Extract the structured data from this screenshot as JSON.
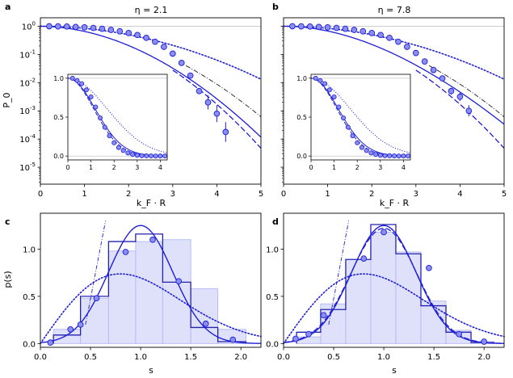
{
  "chart_data": [
    {
      "panel": "a",
      "type": "line",
      "title": "η = 2.1",
      "xlabel": "k_F · R",
      "ylabel": "P_0",
      "xlim": [
        0,
        5
      ],
      "ylim": [
        -5.6,
        0.3
      ],
      "yscale": "log",
      "xticks": [
        "0",
        "1",
        "2",
        "3",
        "4",
        "5"
      ],
      "yticks": [
        "10^-5",
        "10^-4",
        "10^-3",
        "10^-2",
        "10^-1",
        "10^0"
      ],
      "points_log10": [
        [
          0.2,
          0
        ],
        [
          0.4,
          -0.004
        ],
        [
          0.6,
          -0.01
        ],
        [
          0.8,
          -0.025
        ],
        [
          1.0,
          -0.04
        ],
        [
          1.2,
          -0.06
        ],
        [
          1.4,
          -0.09
        ],
        [
          1.6,
          -0.13
        ],
        [
          1.8,
          -0.18
        ],
        [
          2.0,
          -0.24
        ],
        [
          2.2,
          -0.31
        ],
        [
          2.4,
          -0.41
        ],
        [
          2.6,
          -0.55
        ],
        [
          2.8,
          -0.73
        ],
        [
          3.0,
          -0.97
        ],
        [
          3.2,
          -1.3
        ],
        [
          3.4,
          -1.75
        ],
        [
          3.6,
          -2.3
        ],
        [
          3.8,
          -2.7
        ],
        [
          4.0,
          -3.1
        ],
        [
          4.2,
          -3.75
        ]
      ],
      "errorbars": [
        [
          3.8,
          0.25
        ],
        [
          4.0,
          0.3
        ],
        [
          4.2,
          0.35
        ]
      ],
      "inset": {
        "xlim": [
          0,
          4.3
        ],
        "ylim": [
          -0.05,
          1.05
        ],
        "xticks": [
          "0",
          "1",
          "2",
          "3",
          "4"
        ],
        "yticks": [
          "0.0",
          "0.5",
          "1.0"
        ],
        "points": [
          [
            0.2,
            1.0
          ],
          [
            0.4,
            0.97
          ],
          [
            0.6,
            0.93
          ],
          [
            0.8,
            0.85
          ],
          [
            1.0,
            0.76
          ],
          [
            1.2,
            0.63
          ],
          [
            1.4,
            0.49
          ],
          [
            1.6,
            0.37
          ],
          [
            1.8,
            0.26
          ],
          [
            2.0,
            0.17
          ],
          [
            2.2,
            0.11
          ],
          [
            2.4,
            0.07
          ],
          [
            2.6,
            0.04
          ],
          [
            2.8,
            0.02
          ],
          [
            3.0,
            0.01
          ],
          [
            3.2,
            0.005
          ],
          [
            3.4,
            0.003
          ],
          [
            3.6,
            0.002
          ],
          [
            3.8,
            0.001
          ],
          [
            4.0,
            0.0
          ],
          [
            4.2,
            0.0
          ]
        ]
      }
    },
    {
      "panel": "b",
      "type": "line",
      "title": "η = 7.8",
      "xlabel": "k_F · R",
      "ylabel": "",
      "xlim": [
        0,
        5
      ],
      "ylim": [
        -5.6,
        0.3
      ],
      "yscale": "log",
      "xticks": [
        "0",
        "1",
        "2",
        "3",
        "4",
        "5"
      ],
      "yticks": [],
      "points_log10": [
        [
          0.2,
          0
        ],
        [
          0.4,
          -0.004
        ],
        [
          0.6,
          -0.01
        ],
        [
          0.8,
          -0.025
        ],
        [
          1.0,
          -0.04
        ],
        [
          1.2,
          -0.06
        ],
        [
          1.4,
          -0.09
        ],
        [
          1.6,
          -0.13
        ],
        [
          1.8,
          -0.18
        ],
        [
          2.0,
          -0.24
        ],
        [
          2.2,
          -0.31
        ],
        [
          2.4,
          -0.41
        ],
        [
          2.6,
          -0.55
        ],
        [
          2.8,
          -0.73
        ],
        [
          3.0,
          -0.95
        ],
        [
          3.2,
          -1.25
        ],
        [
          3.4,
          -1.55
        ],
        [
          3.6,
          -1.85
        ],
        [
          3.8,
          -2.3
        ],
        [
          4.0,
          -2.5
        ],
        [
          4.2,
          -3.0
        ]
      ],
      "errorbars": [
        [
          3.8,
          0.12
        ],
        [
          4.0,
          0.15
        ],
        [
          4.2,
          0.2
        ]
      ],
      "inset": {
        "xlim": [
          0,
          4.3
        ],
        "ylim": [
          -0.05,
          1.05
        ],
        "xticks": [
          "0",
          "1",
          "2",
          "3",
          "4"
        ],
        "yticks": [
          "0.0",
          "0.5",
          "1.0"
        ],
        "points": [
          [
            0.2,
            1.0
          ],
          [
            0.4,
            0.97
          ],
          [
            0.6,
            0.93
          ],
          [
            0.8,
            0.85
          ],
          [
            1.0,
            0.76
          ],
          [
            1.2,
            0.63
          ],
          [
            1.4,
            0.49
          ],
          [
            1.6,
            0.37
          ],
          [
            1.8,
            0.26
          ],
          [
            2.0,
            0.17
          ],
          [
            2.2,
            0.11
          ],
          [
            2.4,
            0.07
          ],
          [
            2.6,
            0.04
          ],
          [
            2.8,
            0.02
          ],
          [
            3.0,
            0.01
          ],
          [
            3.2,
            0.005
          ],
          [
            3.4,
            0.003
          ],
          [
            3.6,
            0.002
          ],
          [
            3.8,
            0.001
          ],
          [
            4.0,
            0.0
          ],
          [
            4.2,
            0.0
          ]
        ]
      }
    },
    {
      "panel": "c",
      "type": "bar",
      "title": "",
      "xlabel": "s",
      "ylabel": "p(s)",
      "xlim": [
        0,
        2.2
      ],
      "ylim": [
        -0.04,
        1.38
      ],
      "xticks": [
        "0.0",
        "0.5",
        "1.0",
        "1.5",
        "2.0"
      ],
      "yticks": [
        "0.0",
        "0.5",
        "1.0"
      ],
      "bin_edges": [
        0.13,
        0.4,
        0.68,
        0.95,
        1.22,
        1.5,
        1.77,
        2.05
      ],
      "hist_light": [
        0.15,
        0.48,
        0.98,
        1.08,
        1.1,
        0.58,
        0.15
      ],
      "hist_dark": [
        0.09,
        0.5,
        1.08,
        1.16,
        0.65,
        0.17,
        0.02
      ],
      "points": [
        [
          0.1,
          0.01
        ],
        [
          0.3,
          0.15
        ],
        [
          0.4,
          0.2
        ],
        [
          0.56,
          0.48
        ],
        [
          0.85,
          0.97
        ],
        [
          1.12,
          1.1
        ],
        [
          1.38,
          0.66
        ],
        [
          1.65,
          0.21
        ],
        [
          1.92,
          0.04
        ]
      ]
    },
    {
      "panel": "d",
      "type": "bar",
      "title": "",
      "xlabel": "s",
      "ylabel": "",
      "xlim": [
        0,
        2.2
      ],
      "ylim": [
        -0.04,
        1.38
      ],
      "xticks": [
        "0.0",
        "0.5",
        "1.0",
        "1.5",
        "2.0"
      ],
      "yticks": [
        "0.0",
        "0.5",
        "1.0"
      ],
      "bin_edges": [
        0.13,
        0.37,
        0.62,
        0.87,
        1.12,
        1.37,
        1.62,
        1.87,
        2.1
      ],
      "hist_light": [
        0.07,
        0.42,
        0.89,
        1.18,
        0.97,
        0.45,
        0.14,
        0.02
      ],
      "hist_dark": [
        0.12,
        0.36,
        0.89,
        1.26,
        0.95,
        0.4,
        0.12,
        0.01
      ],
      "points": [
        [
          0.12,
          0.05
        ],
        [
          0.25,
          0.1
        ],
        [
          0.4,
          0.3
        ],
        [
          0.8,
          0.9
        ],
        [
          1.0,
          1.18
        ],
        [
          1.45,
          0.8
        ],
        [
          1.75,
          0.1
        ],
        [
          2.0,
          0.02
        ]
      ]
    }
  ]
}
